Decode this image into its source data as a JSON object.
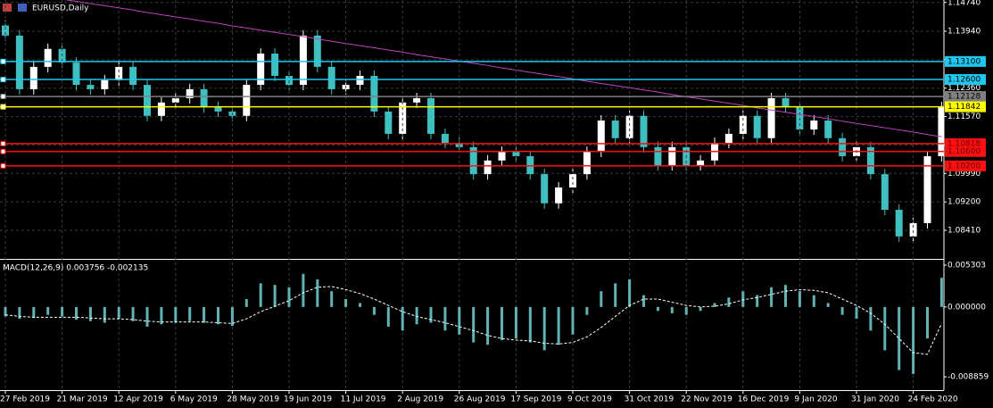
{
  "chart_data": [
    {
      "type": "candlestick",
      "title": "EURUSD,Daily",
      "categories": [
        "27 Feb 2019",
        null,
        null,
        null,
        "21 Mar 2019",
        null,
        null,
        null,
        "12 Apr 2019",
        null,
        null,
        null,
        "6 May 2019",
        null,
        null,
        null,
        "28 May 2019",
        null,
        null,
        null,
        "19 Jun 2019",
        null,
        null,
        null,
        "11 Jul 2019",
        null,
        null,
        null,
        "2 Aug 2019",
        null,
        null,
        null,
        "26 Aug 2019",
        null,
        null,
        null,
        "17 Sep 2019",
        null,
        null,
        null,
        "9 Oct 2019",
        null,
        null,
        null,
        "31 Oct 2019",
        null,
        null,
        null,
        "22 Nov 2019",
        null,
        null,
        null,
        "16 Dec 2019",
        null,
        null,
        null,
        "9 Jan 2020",
        null,
        null,
        null,
        "31 Jan 2020",
        null,
        null,
        null,
        "24 Feb 2020",
        null,
        null
      ],
      "open": [
        1.141,
        1.1382,
        1.1233,
        1.1295,
        1.1345,
        1.1307,
        1.1245,
        1.1233,
        1.1258,
        1.1295,
        1.1245,
        1.1159,
        1.1196,
        1.1208,
        1.1233,
        1.1183,
        1.1171,
        1.1159,
        1.1245,
        1.1332,
        1.127,
        1.1245,
        1.1382,
        1.1295,
        1.1233,
        1.1245,
        1.127,
        1.1171,
        1.1109,
        1.1196,
        1.1208,
        1.1109,
        1.1084,
        1.1072,
        1.0997,
        1.1035,
        1.1059,
        1.1047,
        1.0997,
        1.0916,
        1.096,
        1.0997,
        1.1059,
        1.1146,
        1.1097,
        1.1159,
        1.1072,
        1.1022,
        1.1072,
        1.1022,
        1.1035,
        1.1084,
        1.1109,
        1.1159,
        1.1097,
        1.1208,
        1.1183,
        1.1121,
        1.1146,
        1.1097,
        1.1047,
        1.1072,
        1.0997,
        1.0898,
        1.0824,
        1.0861,
        1.1047
      ],
      "high": [
        1.1425,
        1.1397,
        1.131,
        1.136,
        1.136,
        1.1322,
        1.126,
        1.1273,
        1.131,
        1.131,
        1.126,
        1.1211,
        1.1223,
        1.1248,
        1.1248,
        1.1198,
        1.1186,
        1.126,
        1.1347,
        1.1347,
        1.1285,
        1.1397,
        1.1397,
        1.131,
        1.126,
        1.1285,
        1.1285,
        1.1186,
        1.1211,
        1.1223,
        1.1223,
        1.1124,
        1.1099,
        1.1087,
        1.105,
        1.1074,
        1.1074,
        1.1062,
        1.1012,
        1.0975,
        1.1012,
        1.1074,
        1.1161,
        1.1161,
        1.1174,
        1.1174,
        1.1087,
        1.1087,
        1.1087,
        1.105,
        1.1099,
        1.1124,
        1.1174,
        1.1174,
        1.1223,
        1.1223,
        1.1198,
        1.1161,
        1.1161,
        1.1112,
        1.1087,
        1.1087,
        1.1012,
        1.0913,
        1.0876,
        1.1062,
        1.1198
      ],
      "low": [
        1.1367,
        1.1218,
        1.1218,
        1.128,
        1.1292,
        1.123,
        1.1218,
        1.1218,
        1.1243,
        1.123,
        1.1144,
        1.1144,
        1.1181,
        1.1193,
        1.1168,
        1.1156,
        1.1144,
        1.1144,
        1.123,
        1.1255,
        1.123,
        1.123,
        1.128,
        1.1218,
        1.1218,
        1.123,
        1.1156,
        1.1094,
        1.1094,
        1.1181,
        1.1094,
        1.1069,
        1.1057,
        1.0982,
        1.0982,
        1.102,
        1.1032,
        1.0982,
        1.0901,
        1.0901,
        1.0945,
        1.0982,
        1.1044,
        1.1082,
        1.1082,
        1.1057,
        1.1007,
        1.1007,
        1.1007,
        1.1007,
        1.102,
        1.1069,
        1.1094,
        1.1082,
        1.1082,
        1.1168,
        1.1106,
        1.1106,
        1.1082,
        1.1032,
        1.1032,
        1.0982,
        1.0883,
        1.0809,
        1.0809,
        1.0846,
        1.1032
      ],
      "close": [
        1.1382,
        1.1233,
        1.1295,
        1.1345,
        1.1307,
        1.1245,
        1.1233,
        1.1258,
        1.1295,
        1.1245,
        1.1159,
        1.1196,
        1.1208,
        1.1233,
        1.1183,
        1.1171,
        1.1159,
        1.1245,
        1.1332,
        1.127,
        1.1245,
        1.1382,
        1.1295,
        1.1233,
        1.1245,
        1.127,
        1.1171,
        1.1109,
        1.1196,
        1.1208,
        1.1109,
        1.1084,
        1.1072,
        1.0997,
        1.1035,
        1.1059,
        1.1047,
        1.0997,
        1.0916,
        1.096,
        1.0997,
        1.1059,
        1.1146,
        1.1097,
        1.1159,
        1.1072,
        1.1022,
        1.1072,
        1.1022,
        1.1035,
        1.1084,
        1.1109,
        1.1159,
        1.1097,
        1.1208,
        1.1183,
        1.1121,
        1.1146,
        1.1097,
        1.1047,
        1.1072,
        1.0997,
        1.0898,
        1.0824,
        1.0861,
        1.1047,
        1.1183
      ],
      "up_color": "#ffffff",
      "down_color": "#3fbfbf",
      "ma_values": [
        1.1508,
        1.1502,
        1.1496,
        1.149,
        1.1483,
        1.1477,
        1.1471,
        1.1465,
        1.1459,
        1.1453,
        1.1446,
        1.144,
        1.1434,
        1.1428,
        1.1422,
        1.1416,
        1.1409,
        1.1403,
        1.1397,
        1.1391,
        1.1385,
        1.1379,
        1.1373,
        1.1366,
        1.136,
        1.1354,
        1.1348,
        1.1342,
        1.1336,
        1.1329,
        1.1323,
        1.1317,
        1.1311,
        1.1305,
        1.1299,
        1.1292,
        1.1286,
        1.128,
        1.1274,
        1.1268,
        1.1262,
        1.1255,
        1.1249,
        1.1243,
        1.1237,
        1.1231,
        1.1225,
        1.1218,
        1.1212,
        1.1206,
        1.12,
        1.1194,
        1.1188,
        1.1181,
        1.1175,
        1.1169,
        1.1163,
        1.1157,
        1.1151,
        1.1144,
        1.1138,
        1.1132,
        1.1126,
        1.112,
        1.1114,
        1.1107,
        1.1101
      ],
      "ma_color": "#c040c0",
      "levels": [
        {
          "value": 1.131,
          "label": "1.13100",
          "color": "#1ec8f0"
        },
        {
          "value": 1.126,
          "label": "1.12600",
          "color": "#1ec8f0"
        },
        {
          "value": 1.12128,
          "label": "1.12128",
          "color": "#808080"
        },
        {
          "value": 1.11842,
          "label": "1.11842",
          "color": "#ffff00"
        },
        {
          "value": 1.10818,
          "label": "1.10818",
          "color": "#ff1010"
        },
        {
          "value": 1.106,
          "label": "1.10600",
          "color": "#ff1010"
        },
        {
          "value": 1.102,
          "label": "1.10200",
          "color": "#ff1010"
        }
      ],
      "ylim": [
        1.07616,
        1.14808
      ],
      "yticks": [
        {
          "value": 1.1474,
          "label": "1.14740"
        },
        {
          "value": 1.1394,
          "label": "1.13940"
        },
        {
          "value": 1.1315,
          "label": "1.13150"
        },
        {
          "value": 1.1236,
          "label": "1.12360"
        },
        {
          "value": 1.1157,
          "label": "1.11570"
        },
        {
          "value": 1.1078,
          "label": "1.10780"
        },
        {
          "value": 1.0999,
          "label": "1.09990"
        },
        {
          "value": 1.092,
          "label": "1.09200"
        },
        {
          "value": 1.0841,
          "label": "1.08410"
        }
      ],
      "grid": true
    },
    {
      "type": "macd",
      "title": "MACD(12,26,9) 0.003756 -0.002135",
      "values": [
        -0.0012,
        -0.0015,
        -0.0014,
        -0.001,
        -0.0012,
        -0.0016,
        -0.0018,
        -0.002,
        -0.0015,
        -0.0018,
        -0.0025,
        -0.0022,
        -0.002,
        -0.0018,
        -0.002,
        -0.0022,
        -0.0024,
        0.001,
        0.003,
        0.0028,
        0.0025,
        0.0042,
        0.0035,
        0.002,
        0.001,
        0.0005,
        -0.001,
        -0.0025,
        -0.003,
        -0.0022,
        -0.002,
        -0.003,
        -0.0035,
        -0.0045,
        -0.0048,
        -0.0042,
        -0.004,
        -0.0045,
        -0.0055,
        -0.0048,
        -0.0035,
        -0.001,
        0.002,
        0.003,
        0.0035,
        0.0015,
        -0.0005,
        -0.0008,
        -0.001,
        -0.0005,
        0.0005,
        0.0012,
        0.002,
        0.0015,
        0.0025,
        0.0028,
        0.002,
        0.0015,
        0.0005,
        -0.001,
        -0.0015,
        -0.003,
        -0.0055,
        -0.008,
        -0.0085,
        -0.004,
        0.0037
      ],
      "signal": [
        -0.001,
        -0.0012,
        -0.0013,
        -0.0013,
        -0.0013,
        -0.0013,
        -0.0014,
        -0.0015,
        -0.0015,
        -0.0016,
        -0.0018,
        -0.0019,
        -0.0019,
        -0.0019,
        -0.0019,
        -0.002,
        -0.0021,
        -0.0015,
        -0.0006,
        0.0001,
        0.0008,
        0.0018,
        0.0025,
        0.0026,
        0.0022,
        0.0017,
        0.001,
        0.0002,
        -0.0006,
        -0.0012,
        -0.0016,
        -0.002,
        -0.0025,
        -0.003,
        -0.0036,
        -0.004,
        -0.0042,
        -0.0043,
        -0.0046,
        -0.0047,
        -0.0045,
        -0.0038,
        -0.0026,
        -0.0012,
        0.0002,
        0.001,
        0.001,
        0.0006,
        0.0002,
        0.0,
        0.0001,
        0.0004,
        0.0009,
        0.0012,
        0.0016,
        0.002,
        0.0022,
        0.0021,
        0.0018,
        0.001,
        0.0002,
        -0.0008,
        -0.0022,
        -0.004,
        -0.0058,
        -0.006,
        -0.0021
      ],
      "color": "#5fb3b3",
      "signal_color": "#ffffff",
      "ylim": [
        -0.01055,
        0.00587
      ],
      "yticks": [
        {
          "value": 0.005303,
          "label": "0.005303"
        },
        {
          "value": 0,
          "label": "0.000000"
        },
        {
          "value": -0.008859,
          "label": "-0.008859"
        }
      ]
    }
  ]
}
